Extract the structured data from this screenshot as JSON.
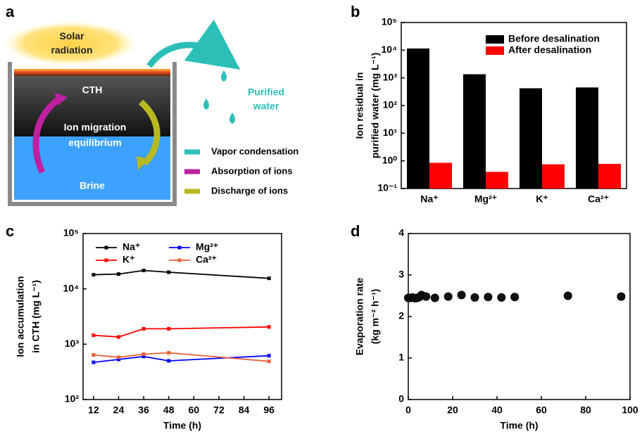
{
  "diagram": {
    "panel_label": "a",
    "sun": "Solar radiation",
    "top_layer": "CTH",
    "middle": "Ion migration equilibrium",
    "bottom": "Brine",
    "product": "Purified water",
    "legend": [
      "Vapor condensation",
      "Absorption of ions",
      "Discharge of ions"
    ]
  },
  "chart_data": [
    {
      "type": "bar",
      "panel_label": "b",
      "ylabel": [
        "Ion residual in",
        "purified water (mg L⁻¹)"
      ],
      "log_y": true,
      "categories": [
        "Na⁺",
        "Mg²⁺",
        "K⁺",
        "Ca²⁺"
      ],
      "series": [
        {
          "name": "Before desalination",
          "color": "#000000",
          "values": [
            11500,
            1350,
            420,
            450
          ]
        },
        {
          "name": "After desalination",
          "color": "#ff0000",
          "values": [
            0.85,
            0.4,
            0.75,
            0.78
          ]
        }
      ],
      "ylim": [
        0.1,
        100000
      ],
      "yticks": [
        {
          "value": 0.1,
          "label": "10⁻¹"
        },
        {
          "value": 1,
          "label": "10⁰"
        },
        {
          "value": 10,
          "label": "10¹"
        },
        {
          "value": 100,
          "label": "10²"
        },
        {
          "value": 1000,
          "label": "10³"
        },
        {
          "value": 10000,
          "label": "10⁴"
        },
        {
          "value": 100000,
          "label": "10⁵"
        }
      ],
      "legend": "upper right"
    },
    {
      "type": "line",
      "panel_label": "c",
      "xlabel": "Time (h)",
      "ylabel": [
        "Ion accumulation",
        "in CTH  (mg L⁻¹)"
      ],
      "log_y": true,
      "x": [
        12,
        24,
        36,
        48,
        96
      ],
      "series": [
        {
          "name": "Na⁺",
          "color": "#000000",
          "values": [
            18000,
            18500,
            21500,
            20000,
            15500
          ]
        },
        {
          "name": "Mg²⁺",
          "color": "#0000ff",
          "values": [
            470,
            530,
            600,
            500,
            620
          ]
        },
        {
          "name": "K⁺",
          "color": "#ff0000",
          "values": [
            1450,
            1350,
            1900,
            1900,
            2050
          ]
        },
        {
          "name": "Ca²⁺",
          "color": "#e8603a",
          "values": [
            640,
            580,
            660,
            700,
            490
          ]
        }
      ],
      "xlim": [
        7,
        102
      ],
      "xticks": [
        12,
        24,
        36,
        48,
        60,
        72,
        84,
        96
      ],
      "ylim": [
        100,
        100000
      ],
      "yticks": [
        {
          "value": 100,
          "label": "10²"
        },
        {
          "value": 1000,
          "label": "10³"
        },
        {
          "value": 10000,
          "label": "10⁴"
        },
        {
          "value": 100000,
          "label": "10⁵"
        }
      ],
      "legend": "upper left"
    },
    {
      "type": "scatter",
      "panel_label": "d",
      "xlabel": "Time (h)",
      "ylabel": [
        "Evaporation rate",
        "(kg m⁻² h⁻¹)"
      ],
      "x": [
        0,
        1,
        2,
        3,
        4,
        5,
        6,
        8,
        12,
        18,
        24,
        30,
        36,
        42,
        48,
        72,
        96
      ],
      "values": [
        2.45,
        2.45,
        2.46,
        2.44,
        2.45,
        2.47,
        2.52,
        2.48,
        2.45,
        2.48,
        2.52,
        2.46,
        2.47,
        2.46,
        2.47,
        2.5,
        2.48
      ],
      "color": "#111111",
      "xlim": [
        0,
        100
      ],
      "xticks": [
        0,
        20,
        40,
        60,
        80,
        100
      ],
      "ylim": [
        0,
        4
      ],
      "yticks": [
        0,
        1,
        2,
        3,
        4
      ]
    }
  ]
}
